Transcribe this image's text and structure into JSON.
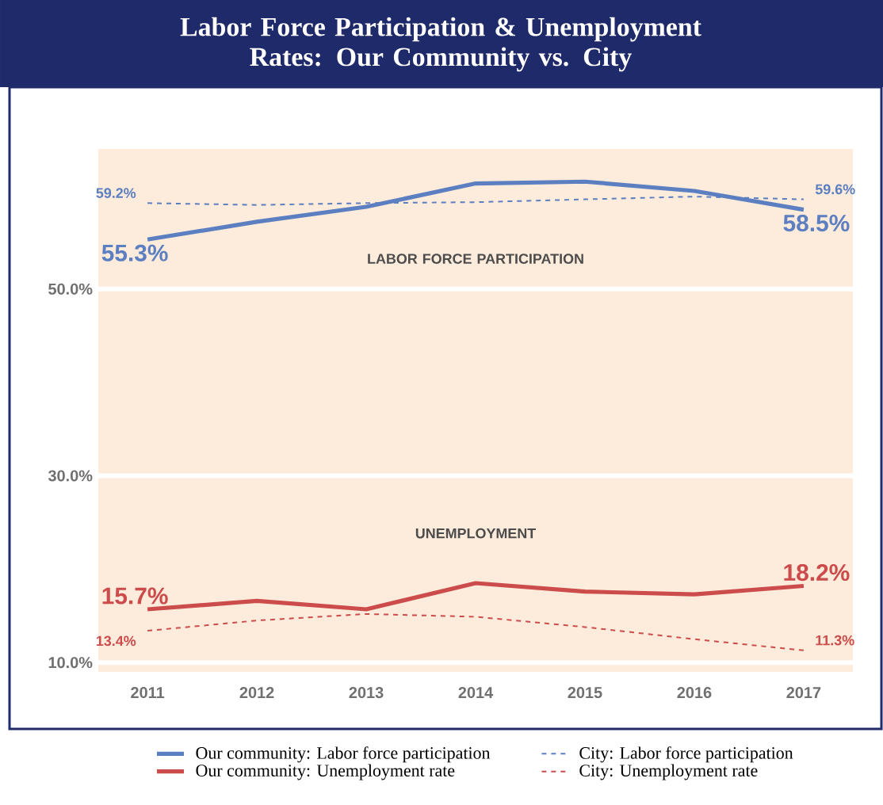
{
  "chart_data": {
    "type": "line",
    "title": "Labor Force Participation & Unemployment Rates: Our Community vs. City",
    "categories": [
      "2011",
      "2012",
      "2013",
      "2014",
      "2015",
      "2016",
      "2017"
    ],
    "series": [
      {
        "name": "Our community: Labor force participation",
        "color": "#5b7fc0",
        "line_style": "solid",
        "values": [
          55.3,
          57.2,
          58.8,
          61.3,
          61.5,
          60.5,
          58.5
        ],
        "value_labels": [
          "55.3%",
          null,
          null,
          null,
          null,
          null,
          "58.5%"
        ]
      },
      {
        "name": "City: Labor force participation",
        "color": "#5b7fc0",
        "line_style": "dashed",
        "values": [
          59.2,
          59.0,
          59.2,
          59.3,
          59.6,
          59.9,
          59.6
        ],
        "value_labels": [
          "59.2%",
          null,
          null,
          null,
          null,
          null,
          "59.6%"
        ]
      },
      {
        "name": "Our community: Unemployment rate",
        "color": "#cc4b4b",
        "line_style": "solid",
        "values": [
          15.7,
          16.6,
          15.7,
          18.5,
          17.6,
          17.3,
          18.2
        ],
        "value_labels": [
          "15.7%",
          null,
          null,
          null,
          null,
          null,
          "18.2%"
        ]
      },
      {
        "name": "City: Unemployment rate",
        "color": "#cc4b4b",
        "line_style": "dashed",
        "values": [
          13.4,
          14.5,
          15.2,
          14.9,
          13.8,
          12.5,
          11.3
        ],
        "value_labels": [
          "13.4%",
          null,
          null,
          null,
          null,
          null,
          "11.3%"
        ]
      }
    ],
    "annotations": [
      "LABOR FORCE PARTICIPATION",
      "UNEMPLOYMENT"
    ],
    "ylim": [
      9,
      65
    ],
    "yticks": [
      {
        "value": 10,
        "label": "10.0%"
      },
      {
        "value": 30,
        "label": "30.0%"
      },
      {
        "value": 50,
        "label": "50.0%"
      }
    ],
    "grid": "y",
    "legend": "bottom",
    "marker": "none"
  }
}
